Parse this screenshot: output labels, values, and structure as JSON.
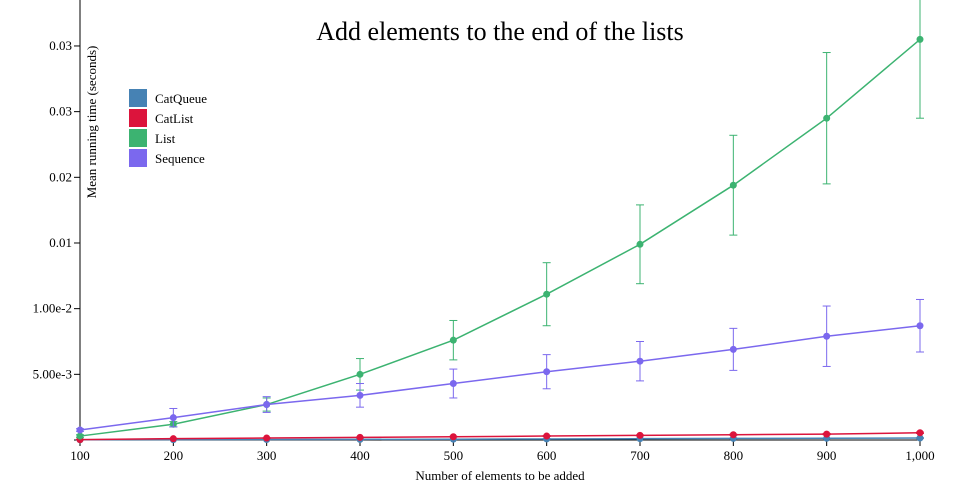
{
  "chart_data": {
    "type": "line",
    "title": "Add elements to the end of the lists",
    "xlabel": "Number of elements to be added",
    "ylabel": "Mean running time (seconds)",
    "x": [
      100,
      200,
      300,
      400,
      500,
      600,
      700,
      800,
      900,
      1000
    ],
    "x_tick_labels": [
      "100",
      "200",
      "300",
      "400",
      "500",
      "600",
      "700",
      "800",
      "900",
      "1,000"
    ],
    "y_ticks": [
      0.005,
      0.01,
      0.015,
      0.02,
      0.025,
      0.03
    ],
    "y_tick_labels": [
      "5.00e-3",
      "1.00e-2",
      "0.01",
      "0.02",
      "0.03",
      "0.03"
    ],
    "ylim": [
      0,
      0.0335
    ],
    "xlim": [
      100,
      1000
    ],
    "grid": false,
    "legend_position": "top-left",
    "series": [
      {
        "name": "CatQueue",
        "color": "#4682b4",
        "values": [
          2e-05,
          3e-05,
          4e-05,
          5e-05,
          6e-05,
          8e-05,
          0.0001,
          0.00012,
          0.00013,
          0.00015
        ],
        "errors": [
          1e-05,
          1e-05,
          1e-05,
          1e-05,
          1e-05,
          2e-05,
          2e-05,
          2e-05,
          2e-05,
          2e-05
        ]
      },
      {
        "name": "CatList",
        "color": "#dc143c",
        "values": [
          3e-05,
          0.0001,
          0.00015,
          0.0002,
          0.00025,
          0.0003,
          0.00035,
          0.0004,
          0.00045,
          0.00055
        ],
        "errors": [
          1e-05,
          2e-05,
          2e-05,
          3e-05,
          3e-05,
          3e-05,
          4e-05,
          4e-05,
          5e-05,
          5e-05
        ]
      },
      {
        "name": "List",
        "color": "#3cb371",
        "values": [
          0.0003,
          0.0012,
          0.0027,
          0.005,
          0.0076,
          0.0111,
          0.0149,
          0.0194,
          0.0245,
          0.0305
        ],
        "errors": [
          0.0001,
          0.0002,
          0.0005,
          0.0012,
          0.0015,
          0.0024,
          0.003,
          0.0038,
          0.005,
          0.006
        ]
      },
      {
        "name": "Sequence",
        "color": "#7b68ee",
        "values": [
          0.00076,
          0.0017,
          0.0027,
          0.0034,
          0.0043,
          0.0052,
          0.006,
          0.0069,
          0.0079,
          0.0087
        ],
        "errors": [
          0.0001,
          0.0007,
          0.0006,
          0.0009,
          0.0011,
          0.0013,
          0.0015,
          0.0016,
          0.0023,
          0.002
        ]
      }
    ]
  }
}
